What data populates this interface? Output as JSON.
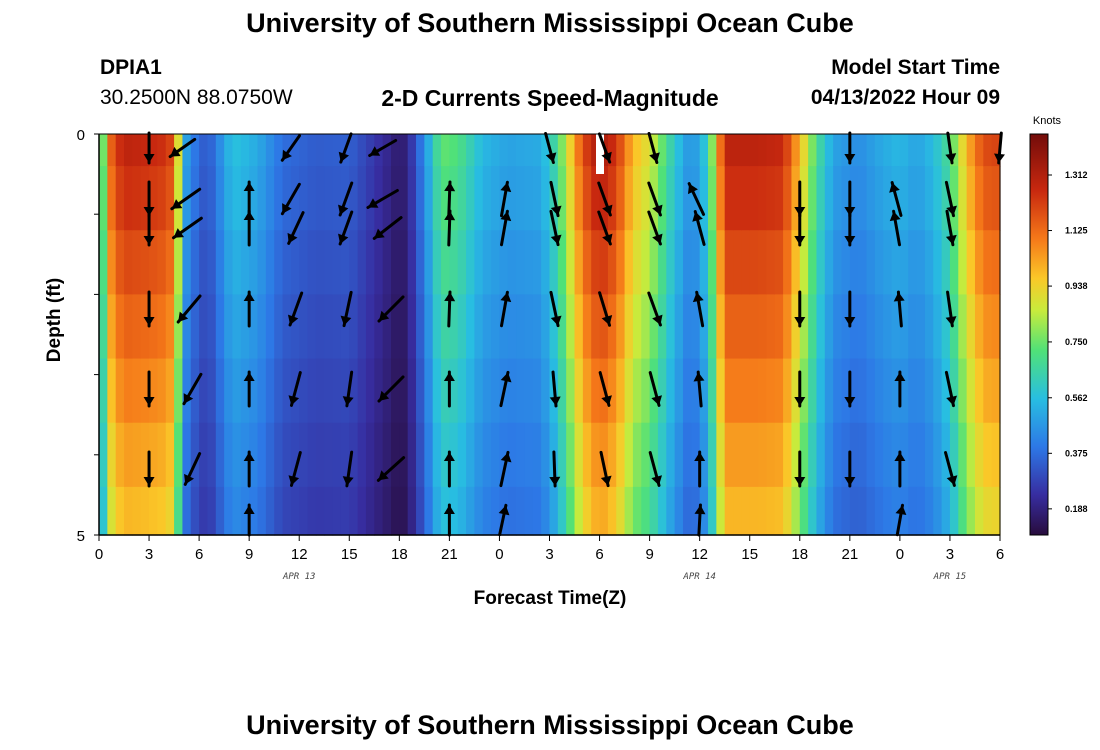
{
  "header": {
    "title": "University of Southern Mississippi Ocean Cube",
    "station_id": "DPIA1",
    "station_coords": "30.2500N  88.0750W",
    "chart_title": "2-D Currents Speed-Magnitude",
    "model_start_label": "Model Start Time",
    "model_start_value": "04/13/2022 Hour 09"
  },
  "footer": {
    "title": "University of Southern Mississippi Ocean Cube"
  },
  "chart_data": {
    "type": "heatmap",
    "title": "2-D Currents Speed-Magnitude",
    "xlabel": "Forecast Time(Z)",
    "ylabel": "Depth (ft)",
    "x_tick_labels": [
      "0",
      "3",
      "6",
      "9",
      "12",
      "15",
      "18",
      "21",
      "0",
      "3",
      "6",
      "9",
      "12",
      "15",
      "18",
      "21",
      "0",
      "3",
      "6"
    ],
    "x_date_labels": [
      {
        "label": "APR 13",
        "at_hours": 12
      },
      {
        "label": "APR 14",
        "at_hours": 36
      },
      {
        "label": "APR 15",
        "at_hours": 51
      }
    ],
    "x_range_hours": [
      0,
      54
    ],
    "y_range_ft": [
      0,
      5
    ],
    "y_tick_labels": [
      "0",
      "5"
    ],
    "colorbar": {
      "unit": "Knots",
      "range": [
        0.1,
        1.45
      ],
      "labels": [
        "1.312",
        "1.125",
        "0.938",
        "0.750",
        "0.562",
        "0.375",
        "0.188"
      ]
    },
    "speed_profile_hours": [
      0,
      0.3,
      0.8,
      1.5,
      3,
      4.2,
      4.7,
      5.3,
      6.5,
      8,
      9.5,
      11,
      13,
      15,
      16.5,
      17.5,
      18,
      18.5,
      19.5,
      20.5,
      21.5,
      23,
      24.5,
      26.5,
      27.5,
      29,
      30,
      31,
      32,
      33,
      34.5,
      35.5,
      36.5,
      37.5,
      38.5,
      39.5,
      41,
      42,
      43,
      44,
      45.5,
      47,
      48,
      49,
      50,
      51,
      52,
      53,
      54
    ],
    "speed_profile_knots": [
      0.6,
      0.8,
      1.2,
      1.3,
      1.28,
      1.25,
      0.95,
      0.45,
      0.32,
      0.58,
      0.52,
      0.38,
      0.34,
      0.35,
      0.26,
      0.2,
      0.16,
      0.2,
      0.45,
      0.75,
      0.72,
      0.55,
      0.5,
      0.52,
      0.7,
      1.2,
      1.35,
      1.25,
      1.0,
      0.9,
      0.6,
      0.45,
      0.62,
      1.3,
      1.3,
      1.3,
      1.28,
      1.0,
      0.7,
      0.5,
      0.45,
      0.52,
      0.55,
      0.5,
      0.56,
      0.7,
      1.0,
      1.2,
      1.22
    ],
    "depth_rows": 5,
    "vectors_top": [
      {
        "h": 3,
        "dir": 180
      },
      {
        "h": 5,
        "dir": 235
      },
      {
        "h": 11.5,
        "dir": 215
      },
      {
        "h": 14.8,
        "dir": 200
      },
      {
        "h": 17,
        "dir": 240
      },
      {
        "h": 27,
        "dir": 165
      },
      {
        "h": 30.3,
        "dir": 160
      },
      {
        "h": 33.2,
        "dir": 165
      },
      {
        "h": 45,
        "dir": 180
      },
      {
        "h": 51,
        "dir": 172
      },
      {
        "h": 54,
        "dir": 185
      }
    ],
    "vectors_rows": [
      [
        {
          "h": 3,
          "dir": 180
        },
        {
          "h": 5.2,
          "dir": 235
        },
        {
          "h": 9,
          "dir": 0
        },
        {
          "h": 11.5,
          "dir": 210
        },
        {
          "h": 14.8,
          "dir": 200
        },
        {
          "h": 17,
          "dir": 240
        },
        {
          "h": 21,
          "dir": 2
        },
        {
          "h": 24.3,
          "dir": 10
        },
        {
          "h": 27.3,
          "dir": 168
        },
        {
          "h": 30.3,
          "dir": 160
        },
        {
          "h": 33.3,
          "dir": 160
        },
        {
          "h": 35.8,
          "dir": 335
        },
        {
          "h": 42,
          "dir": 180
        },
        {
          "h": 45,
          "dir": 180
        },
        {
          "h": 47.8,
          "dir": 345
        },
        {
          "h": 51,
          "dir": 168
        }
      ],
      [
        {
          "h": 3,
          "dir": 180
        },
        {
          "h": 5.3,
          "dir": 235
        },
        {
          "h": 9,
          "dir": 0
        },
        {
          "h": 11.8,
          "dir": 205
        },
        {
          "h": 14.8,
          "dir": 200
        },
        {
          "h": 17.3,
          "dir": 232
        },
        {
          "h": 21,
          "dir": 2
        },
        {
          "h": 24.3,
          "dir": 10
        },
        {
          "h": 27.3,
          "dir": 168
        },
        {
          "h": 30.3,
          "dir": 160
        },
        {
          "h": 33.3,
          "dir": 160
        },
        {
          "h": 36,
          "dir": 345
        },
        {
          "h": 42,
          "dir": 180
        },
        {
          "h": 45,
          "dir": 180
        },
        {
          "h": 47.8,
          "dir": 350
        },
        {
          "h": 51,
          "dir": 170
        }
      ],
      [
        {
          "h": 3,
          "dir": 180
        },
        {
          "h": 5.4,
          "dir": 220
        },
        {
          "h": 9,
          "dir": 0
        },
        {
          "h": 11.8,
          "dir": 200
        },
        {
          "h": 14.9,
          "dir": 192
        },
        {
          "h": 17.5,
          "dir": 225
        },
        {
          "h": 21,
          "dir": 2
        },
        {
          "h": 24.3,
          "dir": 10
        },
        {
          "h": 27.3,
          "dir": 168
        },
        {
          "h": 30.3,
          "dir": 163
        },
        {
          "h": 33.3,
          "dir": 160
        },
        {
          "h": 36,
          "dir": 350
        },
        {
          "h": 42,
          "dir": 180
        },
        {
          "h": 45,
          "dir": 180
        },
        {
          "h": 48,
          "dir": 355
        },
        {
          "h": 51,
          "dir": 172
        }
      ],
      [
        {
          "h": 3,
          "dir": 180
        },
        {
          "h": 5.6,
          "dir": 210
        },
        {
          "h": 9,
          "dir": 0
        },
        {
          "h": 11.8,
          "dir": 195
        },
        {
          "h": 15,
          "dir": 188
        },
        {
          "h": 17.5,
          "dir": 225
        },
        {
          "h": 21,
          "dir": 0
        },
        {
          "h": 24.3,
          "dir": 12
        },
        {
          "h": 27.3,
          "dir": 175
        },
        {
          "h": 30.3,
          "dir": 165
        },
        {
          "h": 33.3,
          "dir": 165
        },
        {
          "h": 36,
          "dir": 355
        },
        {
          "h": 42,
          "dir": 180
        },
        {
          "h": 45,
          "dir": 180
        },
        {
          "h": 48,
          "dir": 0
        },
        {
          "h": 51,
          "dir": 168
        }
      ],
      [
        {
          "h": 3,
          "dir": 180
        },
        {
          "h": 5.6,
          "dir": 205
        },
        {
          "h": 9,
          "dir": 0
        },
        {
          "h": 11.8,
          "dir": 195
        },
        {
          "h": 15,
          "dir": 188
        },
        {
          "h": 17.5,
          "dir": 228
        },
        {
          "h": 21,
          "dir": 0
        },
        {
          "h": 24.3,
          "dir": 12
        },
        {
          "h": 27.3,
          "dir": 178
        },
        {
          "h": 30.3,
          "dir": 168
        },
        {
          "h": 33.3,
          "dir": 165
        },
        {
          "h": 36,
          "dir": 0
        },
        {
          "h": 42,
          "dir": 180
        },
        {
          "h": 45,
          "dir": 180
        },
        {
          "h": 48,
          "dir": 0
        },
        {
          "h": 51,
          "dir": 165
        }
      ]
    ],
    "vectors_bottom": [
      {
        "h": 9,
        "dir": 0
      },
      {
        "h": 21,
        "dir": 0
      },
      {
        "h": 24.2,
        "dir": 12
      },
      {
        "h": 36,
        "dir": 3
      },
      {
        "h": 48,
        "dir": 10
      }
    ]
  }
}
